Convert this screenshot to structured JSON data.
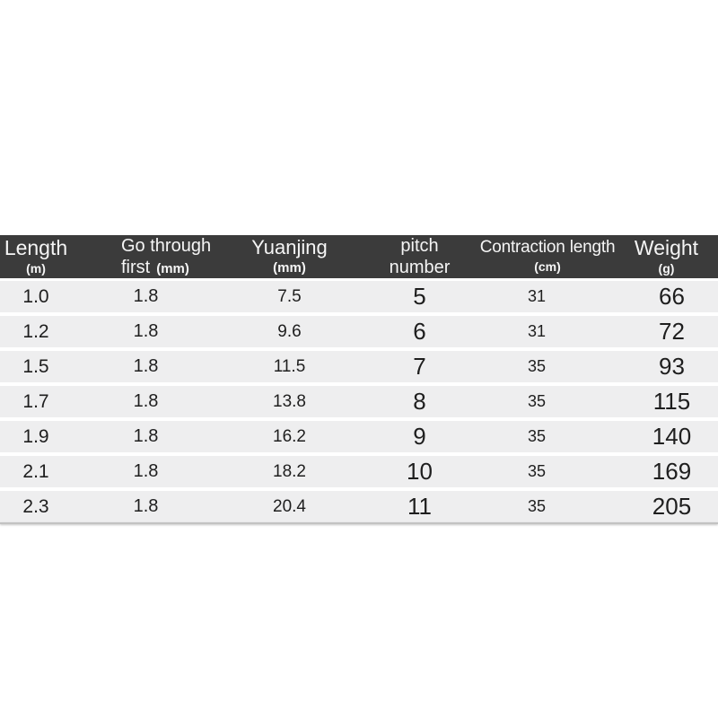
{
  "colors": {
    "page_background": "#ffffff",
    "header_background": "#3b3b3b",
    "header_text": "#f5f5f5",
    "row_background": "#eeeeef",
    "data_text": "#1e1e1e",
    "bottom_edge": "#c2c2c2"
  },
  "chart_data": {
    "type": "table",
    "title": "",
    "columns": [
      {
        "name": "length",
        "title": "Length",
        "title2": "",
        "unit": "(m)"
      },
      {
        "name": "go-through-first",
        "title": "Go through",
        "title2": "first",
        "unit": "(mm)"
      },
      {
        "name": "yuanjing",
        "title": "Yuanjing",
        "title2": "",
        "unit": "(mm)"
      },
      {
        "name": "pitch-number",
        "title": "pitch",
        "title2": "number",
        "unit": ""
      },
      {
        "name": "contraction-length",
        "title": "Contraction length",
        "title2": "",
        "unit": "(cm)"
      },
      {
        "name": "weight",
        "title": "Weight",
        "title2": "",
        "unit": "(g)"
      }
    ],
    "rows": [
      [
        "1.0",
        "1.8",
        "7.5",
        "5",
        "31",
        "66"
      ],
      [
        "1.2",
        "1.8",
        "9.6",
        "6",
        "31",
        "72"
      ],
      [
        "1.5",
        "1.8",
        "11.5",
        "7",
        "35",
        "93"
      ],
      [
        "1.7",
        "1.8",
        "13.8",
        "8",
        "35",
        "115"
      ],
      [
        "1.9",
        "1.8",
        "16.2",
        "9",
        "35",
        "140"
      ],
      [
        "2.1",
        "1.8",
        "18.2",
        "10",
        "35",
        "169"
      ],
      [
        "2.3",
        "1.8",
        "20.4",
        "11",
        "35",
        "205"
      ]
    ]
  }
}
